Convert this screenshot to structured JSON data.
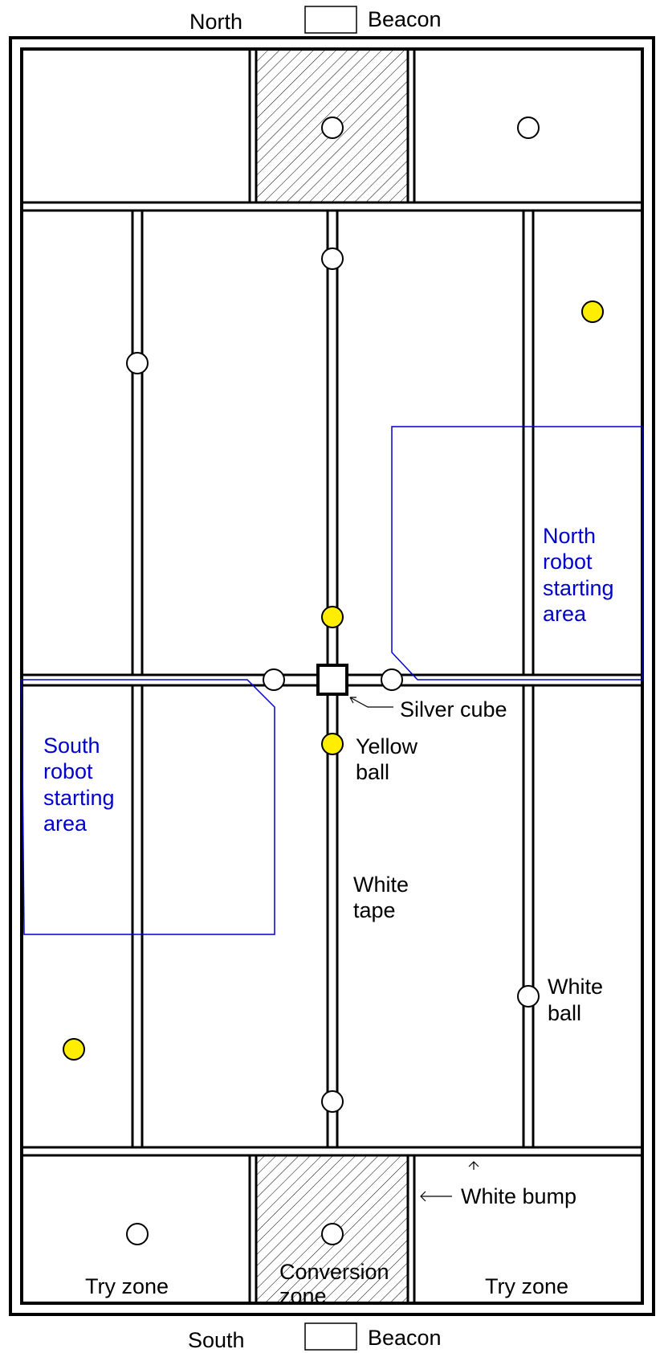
{
  "compass": {
    "north": "North",
    "south": "South"
  },
  "beacon_label": "Beacon",
  "zones": {
    "try_zone_left": "Try zone",
    "try_zone_right": "Try zone",
    "conversion_zone": [
      "Conversion",
      "zone"
    ]
  },
  "starting_areas": {
    "north": [
      "North",
      "robot",
      "starting",
      "area"
    ],
    "south": [
      "South",
      "robot",
      "starting",
      "area"
    ]
  },
  "annotations": {
    "silver_cube": "Silver cube",
    "yellow_ball": [
      "Yellow",
      "ball"
    ],
    "white_tape": [
      "White",
      "tape"
    ],
    "white_ball": [
      "White",
      "ball"
    ],
    "white_bump": "White bump"
  },
  "colors": {
    "yellow_ball": "#ffee00",
    "white_ball": "#ffffff",
    "starting_area_outline": "#0000cc",
    "line": "#000000"
  },
  "counts": {
    "white_balls": 10,
    "yellow_balls": 4,
    "silver_cubes": 1
  }
}
